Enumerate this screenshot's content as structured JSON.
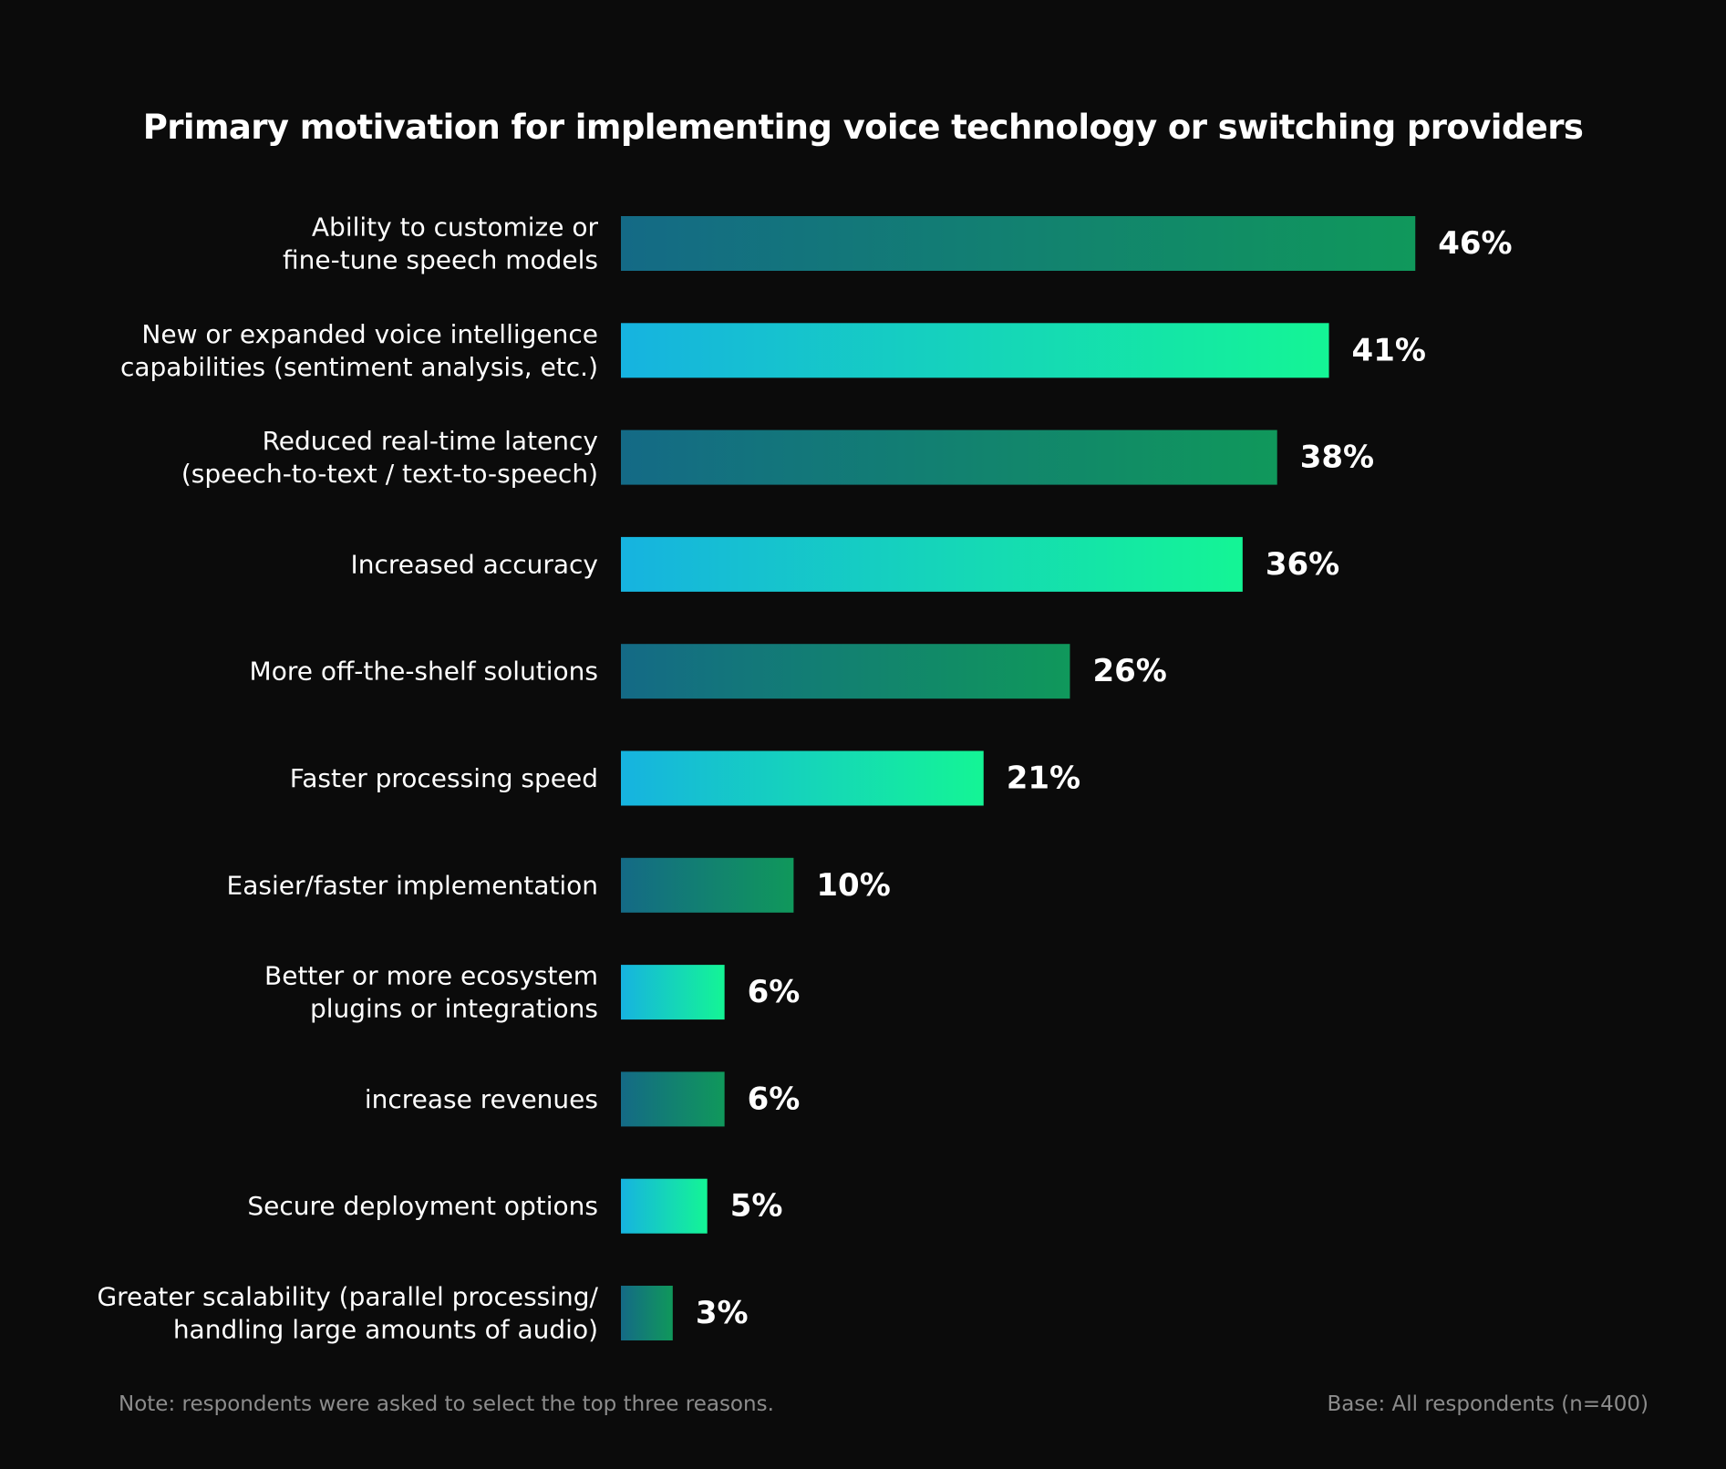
{
  "chart_data": {
    "type": "bar",
    "orientation": "horizontal",
    "title": "Primary motivation for implementing voice technology or switching providers",
    "xlabel": "",
    "ylabel": "",
    "unit": "%",
    "xlim": [
      0,
      50
    ],
    "grid": false,
    "legend": "none",
    "categories": [
      [
        "Ability to customize or",
        "fine-tune speech models"
      ],
      [
        "New or expanded voice intelligence",
        "capabilities (sentiment analysis, etc.)"
      ],
      [
        "Reduced real-time latency",
        "(speech-to-text / text-to-speech)"
      ],
      [
        "Increased accuracy"
      ],
      [
        "More off-the-shelf solutions"
      ],
      [
        "Faster processing speed"
      ],
      [
        "Easier/faster implementation"
      ],
      [
        "Better or more ecosystem",
        "plugins or integrations"
      ],
      [
        "increase revenues"
      ],
      [
        "Secure deployment options"
      ],
      [
        "Greater scalability (parallel processing/",
        "handling large amounts of audio)"
      ]
    ],
    "values": [
      46,
      41,
      38,
      36,
      26,
      21,
      10,
      6,
      6,
      5,
      3
    ],
    "value_labels": [
      "46%",
      "41%",
      "38%",
      "36%",
      "26%",
      "21%",
      "10%",
      "6%",
      "6%",
      "5%",
      "3%"
    ],
    "bar_styles": [
      "dark",
      "bright",
      "dark",
      "bright",
      "dark",
      "bright",
      "dark",
      "bright",
      "dark",
      "bright",
      "dark"
    ],
    "colors": {
      "dark_start": "#146a86",
      "dark_end": "#10985b",
      "bright_start": "#16b3e0",
      "bright_end": "#14f595",
      "background": "#0b0b0b",
      "text": "#ffffff",
      "footnote": "#8c8c8c"
    }
  },
  "footer": {
    "note": "Note: respondents were asked to select the top three reasons.",
    "base": "Base: All respondents (n=400)"
  }
}
